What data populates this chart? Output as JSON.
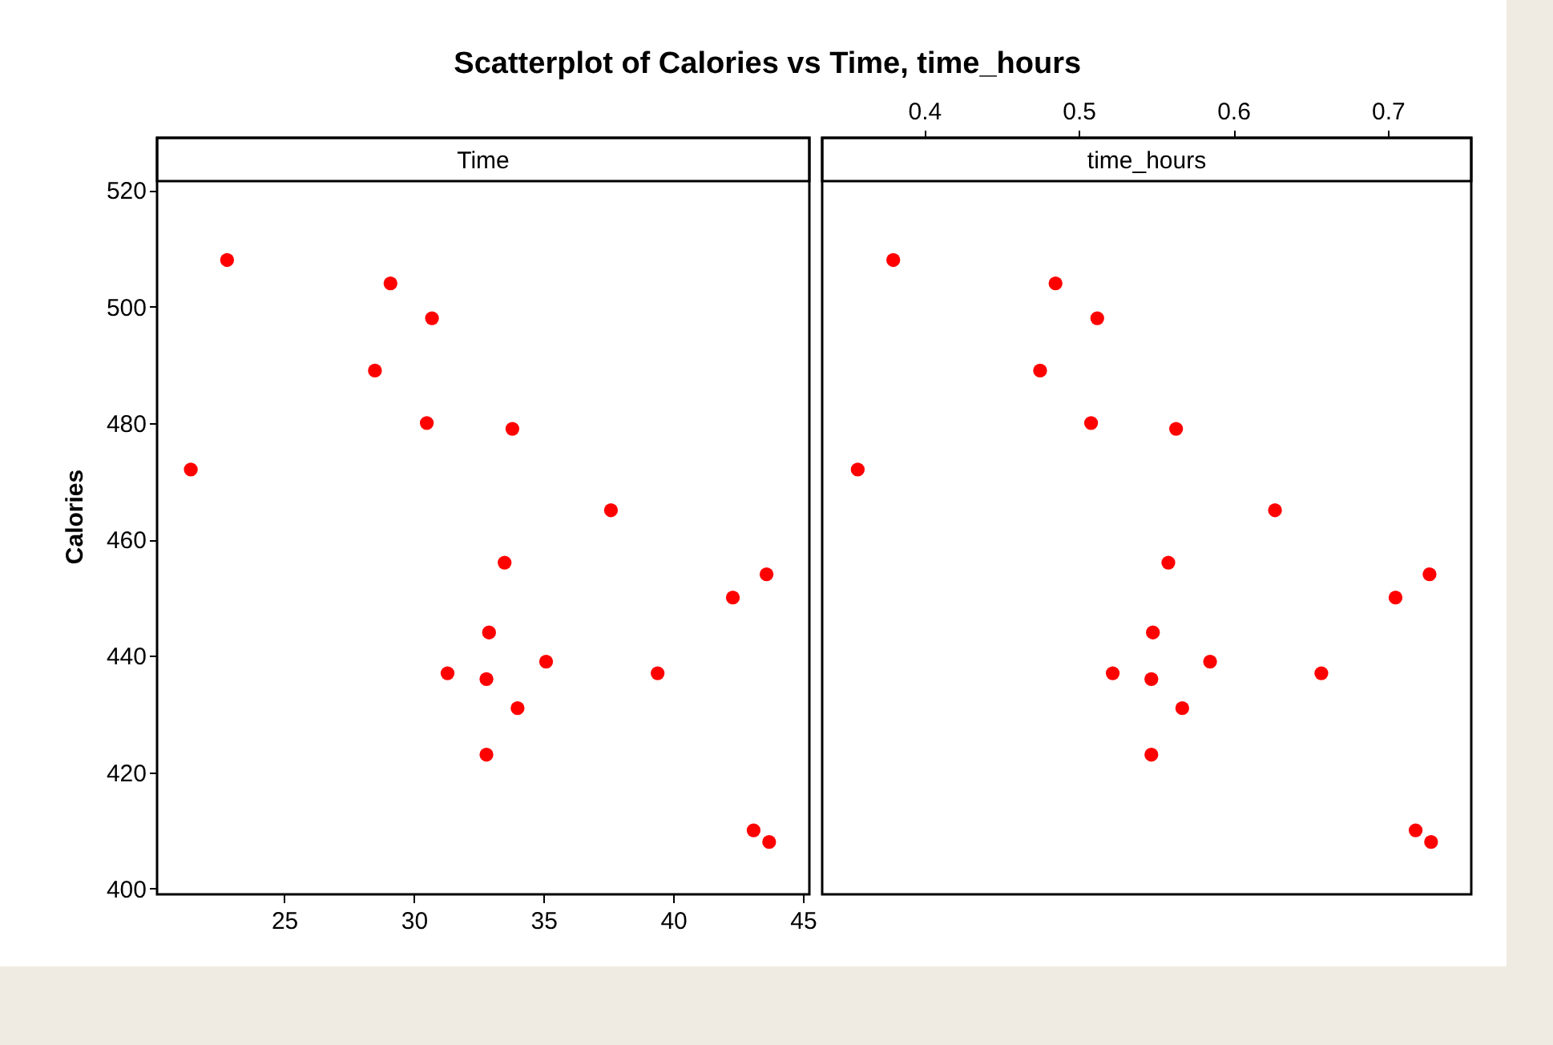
{
  "chart_data": [
    {
      "type": "scatter",
      "title": "Scatterplot of Calories vs Time, time_hours",
      "subtitle": "Time",
      "ylabel": "Calories",
      "xlim": [
        20.1,
        45.25
      ],
      "xticks": [
        25,
        30,
        35,
        40,
        45
      ],
      "ylim": [
        399,
        529
      ],
      "yticks": [
        400,
        420,
        440,
        460,
        480,
        500,
        520
      ],
      "marker": "circle",
      "grid": false,
      "series": [
        {
          "color": "#ff0000",
          "x": [
            21.4,
            22.8,
            28.5,
            29.1,
            30.7,
            30.5,
            33.8,
            37.6,
            33.5,
            32.9,
            31.3,
            32.8,
            35.1,
            34.0,
            32.8,
            39.4,
            42.3,
            43.6,
            43.1,
            43.7
          ],
          "values": [
            472,
            508,
            489,
            504,
            498,
            480,
            479,
            465,
            456,
            444,
            437,
            436,
            439,
            431,
            423,
            437,
            450,
            454,
            410,
            408
          ]
        }
      ]
    },
    {
      "type": "scatter",
      "subtitle": "time_hours",
      "xlim": [
        0.334,
        0.754
      ],
      "xticks": [
        0.4,
        0.5,
        0.6,
        0.7
      ],
      "ylim": [
        399,
        529
      ],
      "tick_labels": "x",
      "marker": "circle",
      "grid": false,
      "series": [
        {
          "color": "#ff0000",
          "x": [
            0.357,
            0.38,
            0.475,
            0.485,
            0.512,
            0.508,
            0.563,
            0.627,
            0.558,
            0.548,
            0.522,
            0.547,
            0.585,
            0.567,
            0.547,
            0.657,
            0.705,
            0.727,
            0.718,
            0.728
          ],
          "values": [
            472,
            508,
            489,
            504,
            498,
            480,
            479,
            465,
            456,
            444,
            437,
            436,
            439,
            431,
            423,
            437,
            450,
            454,
            410,
            408
          ]
        }
      ]
    }
  ]
}
